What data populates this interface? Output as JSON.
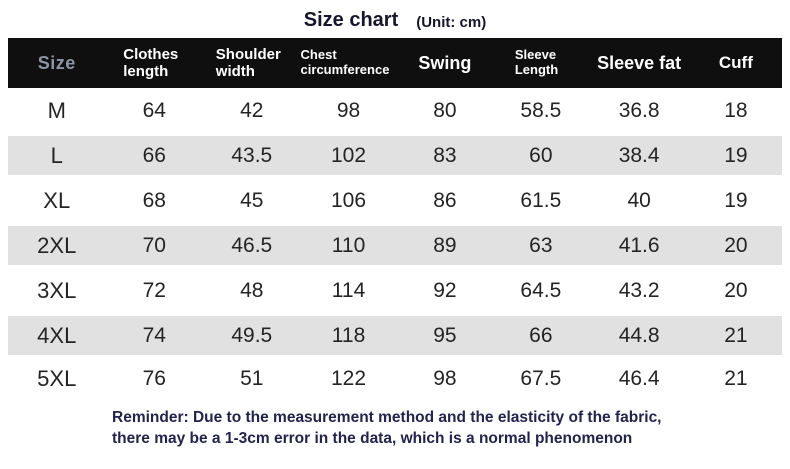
{
  "header": {
    "title": "Size chart",
    "unit": "(Unit: cm)"
  },
  "table": {
    "columns": [
      "Size",
      "Clothes length",
      "Shoulder width",
      "Chest circumference",
      "Swing",
      "Sleeve Length",
      "Sleeve fat",
      "Cuff"
    ],
    "rows": [
      {
        "size": "M",
        "values": [
          "64",
          "42",
          "98",
          "80",
          "58.5",
          "36.8",
          "18"
        ]
      },
      {
        "size": "L",
        "values": [
          "66",
          "43.5",
          "102",
          "83",
          "60",
          "38.4",
          "19"
        ]
      },
      {
        "size": "XL",
        "values": [
          "68",
          "45",
          "106",
          "86",
          "61.5",
          "40",
          "19"
        ]
      },
      {
        "size": "2XL",
        "values": [
          "70",
          "46.5",
          "110",
          "89",
          "63",
          "41.6",
          "20"
        ]
      },
      {
        "size": "3XL",
        "values": [
          "72",
          "48",
          "114",
          "92",
          "64.5",
          "43.2",
          "20"
        ]
      },
      {
        "size": "4XL",
        "values": [
          "74",
          "49.5",
          "118",
          "95",
          "66",
          "44.8",
          "21"
        ]
      },
      {
        "size": "5XL",
        "values": [
          "76",
          "51",
          "122",
          "98",
          "67.5",
          "46.4",
          "21"
        ]
      }
    ]
  },
  "footer": {
    "reminder_line1": "Reminder: Due to the measurement method and the elasticity of the fabric,",
    "reminder_line2": "there may be a 1-3cm error in the data, which is a normal phenomenon"
  },
  "colors": {
    "title_text": "#15152e",
    "header_bg": "#0f0f0f",
    "header_text": "#ffffff",
    "size_header_text": "#8b95a3",
    "zebra_row_bg": "#e1e1e1",
    "body_text": "#242424",
    "reminder_text": "#232350"
  }
}
